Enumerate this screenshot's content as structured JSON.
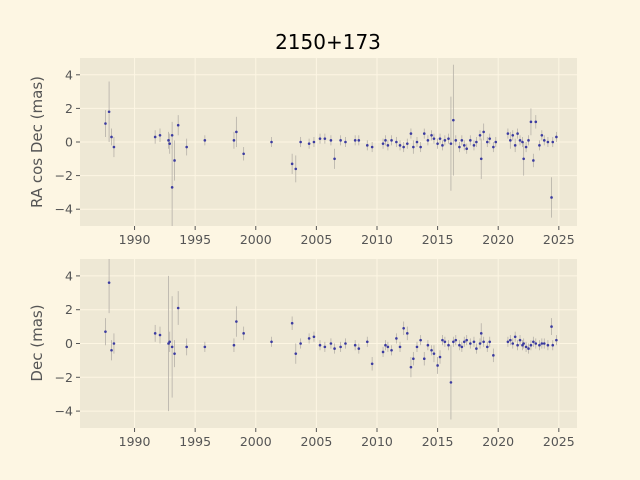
{
  "chart_data": {
    "type": "scatter",
    "title": "2150+173",
    "colors": {
      "background": "#fdf6e3",
      "plot_background": "#eee8d5",
      "grid": "#fdf6e3",
      "point": "#3b3ba0",
      "errorbar": "#b5b0a8",
      "text": "#555555"
    },
    "grid": true,
    "xlim": [
      1985.5,
      2026.5
    ],
    "xticks": [
      1990,
      1995,
      2000,
      2005,
      2010,
      2015,
      2020,
      2025
    ],
    "panels": [
      {
        "name": "ra",
        "ylabel": "RA cos Dec (mas)",
        "ylim": [
          -5,
          5
        ],
        "yticks": [
          -4,
          -2,
          0,
          2,
          4
        ],
        "points": [
          [
            1987.6,
            1.1,
            0.8
          ],
          [
            1987.9,
            1.8,
            1.8
          ],
          [
            1988.1,
            0.3,
            0.5
          ],
          [
            1988.3,
            -0.3,
            0.6
          ],
          [
            1991.7,
            0.3,
            0.4
          ],
          [
            1992.1,
            0.4,
            0.4
          ],
          [
            1992.8,
            0.1,
            0.5
          ],
          [
            1992.9,
            -0.1,
            0.6
          ],
          [
            1993.1,
            0.4,
            0.8
          ],
          [
            1993.1,
            -2.7,
            2.5
          ],
          [
            1993.3,
            -1.1,
            1.2
          ],
          [
            1993.6,
            1.0,
            0.6
          ],
          [
            1994.3,
            -0.3,
            0.5
          ],
          [
            1995.8,
            0.1,
            0.3
          ],
          [
            1998.2,
            0.1,
            0.5
          ],
          [
            1998.4,
            0.6,
            0.9
          ],
          [
            1999.0,
            -0.7,
            0.4
          ],
          [
            2001.3,
            0.0,
            0.3
          ],
          [
            2003.0,
            -1.3,
            0.6
          ],
          [
            2003.3,
            -1.6,
            0.8
          ],
          [
            2003.7,
            0.0,
            0.3
          ],
          [
            2004.4,
            -0.1,
            0.3
          ],
          [
            2004.8,
            0.0,
            0.3
          ],
          [
            2005.3,
            0.2,
            0.3
          ],
          [
            2005.7,
            0.2,
            0.3
          ],
          [
            2006.2,
            0.1,
            0.3
          ],
          [
            2006.5,
            -1.0,
            0.6
          ],
          [
            2007.0,
            0.1,
            0.3
          ],
          [
            2007.4,
            0.0,
            0.3
          ],
          [
            2008.2,
            0.1,
            0.3
          ],
          [
            2008.5,
            0.1,
            0.3
          ],
          [
            2009.2,
            -0.2,
            0.3
          ],
          [
            2009.6,
            -0.3,
            0.3
          ],
          [
            2010.5,
            -0.1,
            0.3
          ],
          [
            2010.7,
            0.1,
            0.3
          ],
          [
            2010.9,
            -0.2,
            0.3
          ],
          [
            2011.2,
            0.1,
            0.3
          ],
          [
            2011.6,
            0.0,
            0.3
          ],
          [
            2011.9,
            -0.2,
            0.3
          ],
          [
            2012.2,
            -0.3,
            0.3
          ],
          [
            2012.5,
            -0.1,
            0.3
          ],
          [
            2012.8,
            0.5,
            0.3
          ],
          [
            2013.0,
            -0.3,
            0.4
          ],
          [
            2013.3,
            0.0,
            0.3
          ],
          [
            2013.6,
            -0.3,
            0.3
          ],
          [
            2013.9,
            0.5,
            0.3
          ],
          [
            2014.2,
            0.1,
            0.3
          ],
          [
            2014.5,
            0.4,
            0.3
          ],
          [
            2014.7,
            0.2,
            0.3
          ],
          [
            2015.0,
            -0.1,
            0.3
          ],
          [
            2015.2,
            0.2,
            0.3
          ],
          [
            2015.4,
            -0.2,
            0.3
          ],
          [
            2015.6,
            0.1,
            0.3
          ],
          [
            2015.9,
            0.2,
            0.3
          ],
          [
            2016.1,
            -0.1,
            2.8
          ],
          [
            2016.3,
            1.3,
            3.3
          ],
          [
            2016.5,
            0.1,
            0.3
          ],
          [
            2016.8,
            -0.3,
            0.3
          ],
          [
            2017.0,
            0.1,
            0.3
          ],
          [
            2017.2,
            -0.2,
            0.3
          ],
          [
            2017.4,
            -0.4,
            0.3
          ],
          [
            2017.7,
            0.1,
            0.3
          ],
          [
            2018.0,
            -0.2,
            0.3
          ],
          [
            2018.2,
            0.0,
            0.3
          ],
          [
            2018.5,
            0.4,
            0.3
          ],
          [
            2018.6,
            -1.0,
            1.2
          ],
          [
            2018.8,
            0.6,
            0.5
          ],
          [
            2019.1,
            0.0,
            0.3
          ],
          [
            2019.3,
            0.2,
            0.3
          ],
          [
            2019.6,
            -0.3,
            0.3
          ],
          [
            2019.8,
            0.0,
            0.3
          ],
          [
            2020.8,
            0.5,
            0.3
          ],
          [
            2021.0,
            0.1,
            0.5
          ],
          [
            2021.2,
            0.4,
            0.3
          ],
          [
            2021.4,
            -0.2,
            0.4
          ],
          [
            2021.6,
            0.5,
            0.3
          ],
          [
            2021.8,
            0.1,
            0.3
          ],
          [
            2022.0,
            0.0,
            0.3
          ],
          [
            2022.1,
            -1.0,
            1.0
          ],
          [
            2022.3,
            -0.3,
            0.3
          ],
          [
            2022.5,
            0.1,
            0.3
          ],
          [
            2022.7,
            1.2,
            0.8
          ],
          [
            2022.9,
            -1.1,
            0.4
          ],
          [
            2023.1,
            1.2,
            0.4
          ],
          [
            2023.4,
            -0.2,
            0.3
          ],
          [
            2023.6,
            0.4,
            0.3
          ],
          [
            2023.8,
            0.1,
            0.3
          ],
          [
            2024.1,
            0.0,
            0.3
          ],
          [
            2024.4,
            -3.3,
            1.2
          ],
          [
            2024.5,
            0.0,
            0.3
          ],
          [
            2024.8,
            0.3,
            0.3
          ]
        ]
      },
      {
        "name": "dec",
        "ylabel": "Dec (mas)",
        "ylim": [
          -5,
          5
        ],
        "yticks": [
          -4,
          -2,
          0,
          2,
          4
        ],
        "points": [
          [
            1987.6,
            0.7,
            0.8
          ],
          [
            1987.9,
            3.6,
            1.8
          ],
          [
            1988.1,
            -0.4,
            0.6
          ],
          [
            1988.3,
            0.0,
            0.6
          ],
          [
            1991.7,
            0.6,
            0.5
          ],
          [
            1992.1,
            0.5,
            0.5
          ],
          [
            1992.8,
            0.0,
            4.0
          ],
          [
            1992.9,
            0.1,
            0.6
          ],
          [
            1993.1,
            -0.2,
            3.0
          ],
          [
            1993.3,
            -0.6,
            0.8
          ],
          [
            1993.6,
            2.1,
            1.0
          ],
          [
            1994.3,
            -0.2,
            0.5
          ],
          [
            1995.8,
            -0.2,
            0.3
          ],
          [
            1998.2,
            -0.1,
            0.4
          ],
          [
            1998.4,
            1.3,
            0.9
          ],
          [
            1999.0,
            0.6,
            0.4
          ],
          [
            2001.3,
            0.1,
            0.3
          ],
          [
            2003.0,
            1.2,
            0.4
          ],
          [
            2003.3,
            -0.6,
            0.6
          ],
          [
            2003.7,
            0.0,
            0.3
          ],
          [
            2004.4,
            0.3,
            0.3
          ],
          [
            2004.8,
            0.4,
            0.3
          ],
          [
            2005.3,
            -0.1,
            0.3
          ],
          [
            2005.7,
            -0.2,
            0.3
          ],
          [
            2006.2,
            0.0,
            0.3
          ],
          [
            2006.5,
            -0.3,
            0.3
          ],
          [
            2007.0,
            -0.2,
            0.3
          ],
          [
            2007.4,
            0.0,
            0.3
          ],
          [
            2008.2,
            -0.1,
            0.3
          ],
          [
            2008.5,
            -0.3,
            0.3
          ],
          [
            2009.2,
            0.1,
            0.3
          ],
          [
            2009.6,
            -1.2,
            0.4
          ],
          [
            2010.5,
            -0.5,
            0.3
          ],
          [
            2010.7,
            -0.1,
            0.3
          ],
          [
            2010.9,
            -0.2,
            0.3
          ],
          [
            2011.2,
            -0.4,
            0.3
          ],
          [
            2011.6,
            0.3,
            0.3
          ],
          [
            2011.9,
            -0.2,
            0.3
          ],
          [
            2012.2,
            0.9,
            0.4
          ],
          [
            2012.5,
            0.6,
            0.4
          ],
          [
            2012.8,
            -1.4,
            0.6
          ],
          [
            2013.0,
            -0.9,
            0.4
          ],
          [
            2013.3,
            -0.2,
            0.3
          ],
          [
            2013.6,
            0.2,
            0.3
          ],
          [
            2013.9,
            -0.9,
            0.4
          ],
          [
            2014.2,
            -0.1,
            0.3
          ],
          [
            2014.5,
            -0.4,
            0.3
          ],
          [
            2014.7,
            -0.6,
            0.5
          ],
          [
            2015.0,
            -1.3,
            0.5
          ],
          [
            2015.2,
            -0.8,
            0.4
          ],
          [
            2015.4,
            0.2,
            0.3
          ],
          [
            2015.6,
            0.1,
            0.3
          ],
          [
            2015.9,
            -0.1,
            0.3
          ],
          [
            2016.1,
            -2.3,
            2.2
          ],
          [
            2016.3,
            0.1,
            0.3
          ],
          [
            2016.5,
            0.2,
            0.3
          ],
          [
            2016.8,
            -0.1,
            0.3
          ],
          [
            2017.0,
            -0.2,
            0.3
          ],
          [
            2017.2,
            0.1,
            0.3
          ],
          [
            2017.4,
            0.2,
            0.3
          ],
          [
            2017.7,
            0.0,
            0.3
          ],
          [
            2018.0,
            0.1,
            0.3
          ],
          [
            2018.2,
            -0.3,
            0.3
          ],
          [
            2018.5,
            0.0,
            0.3
          ],
          [
            2018.6,
            0.6,
            0.6
          ],
          [
            2018.8,
            0.1,
            0.3
          ],
          [
            2019.1,
            -0.2,
            0.3
          ],
          [
            2019.3,
            0.1,
            0.3
          ],
          [
            2019.6,
            -0.7,
            0.4
          ],
          [
            2020.8,
            0.1,
            0.3
          ],
          [
            2021.0,
            0.2,
            0.3
          ],
          [
            2021.2,
            0.0,
            0.3
          ],
          [
            2021.4,
            0.4,
            0.3
          ],
          [
            2021.6,
            -0.1,
            0.3
          ],
          [
            2021.8,
            0.2,
            0.3
          ],
          [
            2022.0,
            -0.1,
            0.3
          ],
          [
            2022.1,
            0.0,
            0.3
          ],
          [
            2022.3,
            -0.2,
            0.3
          ],
          [
            2022.5,
            -0.3,
            0.3
          ],
          [
            2022.7,
            -0.1,
            0.3
          ],
          [
            2022.9,
            0.1,
            0.3
          ],
          [
            2023.1,
            0.0,
            0.3
          ],
          [
            2023.4,
            -0.1,
            0.3
          ],
          [
            2023.6,
            0.0,
            0.3
          ],
          [
            2023.8,
            0.0,
            0.3
          ],
          [
            2024.1,
            -0.1,
            0.3
          ],
          [
            2024.4,
            1.0,
            0.5
          ],
          [
            2024.5,
            -0.1,
            0.3
          ],
          [
            2024.8,
            0.2,
            0.3
          ]
        ]
      }
    ]
  }
}
